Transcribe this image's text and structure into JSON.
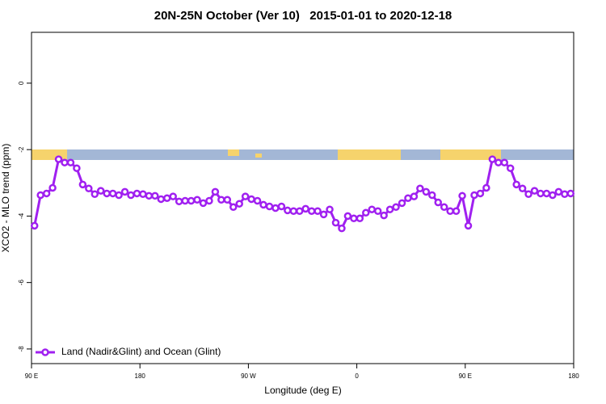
{
  "chart_data": {
    "type": "line",
    "title": "20N-25N October (Ver 10)   2015-01-01 to 2020-12-18",
    "xlabel": "Longitude (deg E)",
    "ylabel": "XCO2 - MLO trend (ppm)",
    "xlim": [
      90,
      540
    ],
    "ylim": [
      -8.44,
      1.53
    ],
    "xticks": [
      {
        "value": 90,
        "label": "90 E"
      },
      180,
      {
        "value": 270,
        "label": "90 W"
      },
      {
        "value": 360,
        "label": "0"
      },
      {
        "value": 450,
        "label": "90 E"
      },
      {
        "value": 540,
        "label": "180"
      }
    ],
    "yticks": [
      0,
      -2,
      -4,
      -6,
      -8
    ],
    "legend": "bottom-left",
    "x": [
      92.5,
      97.5,
      102.5,
      107.5,
      112.5,
      117.5,
      122.5,
      127.5,
      132.5,
      137.5,
      142.5,
      147.5,
      152.5,
      157.5,
      162.5,
      167.5,
      172.5,
      177.5,
      182.5,
      187.5,
      192.5,
      197.5,
      202.5,
      207.5,
      212.5,
      217.5,
      222.5,
      227.5,
      232.5,
      237.5,
      242.5,
      247.5,
      252.5,
      257.5,
      262.5,
      267.5,
      272.5,
      277.5,
      282.5,
      287.5,
      292.5,
      297.5,
      302.5,
      307.5,
      312.5,
      317.5,
      322.5,
      327.5,
      332.5,
      337.5,
      342.5,
      347.5,
      352.5,
      357.5,
      362.5,
      367.5,
      372.5,
      377.5,
      382.5,
      387.5,
      392.5,
      397.5,
      402.5,
      407.5,
      412.5,
      417.5,
      422.5,
      427.5,
      432.5,
      437.5,
      442.5,
      447.5,
      452.5,
      457.5,
      462.5,
      467.5,
      472.5,
      477.5,
      482.5,
      487.5,
      492.5,
      497.5,
      502.5,
      507.5,
      512.5,
      517.5,
      522.5,
      527.5,
      532.5,
      537.5
    ],
    "series": [
      {
        "name": "Land (Nadir&Glint) and Ocean (Glint)",
        "color": "#a020f0",
        "values": [
          -4.29,
          -3.37,
          -3.32,
          -3.15,
          -2.29,
          -2.39,
          -2.39,
          -2.56,
          -3.05,
          -3.17,
          -3.34,
          -3.24,
          -3.32,
          -3.32,
          -3.37,
          -3.27,
          -3.37,
          -3.32,
          -3.34,
          -3.39,
          -3.39,
          -3.49,
          -3.46,
          -3.41,
          -3.56,
          -3.54,
          -3.54,
          -3.51,
          -3.61,
          -3.54,
          -3.27,
          -3.51,
          -3.51,
          -3.73,
          -3.63,
          -3.41,
          -3.49,
          -3.54,
          -3.66,
          -3.71,
          -3.76,
          -3.71,
          -3.83,
          -3.85,
          -3.85,
          -3.78,
          -3.85,
          -3.85,
          -3.95,
          -3.8,
          -4.2,
          -4.37,
          -4.0,
          -4.07,
          -4.07,
          -3.9,
          -3.8,
          -3.85,
          -3.98,
          -3.8,
          -3.73,
          -3.61,
          -3.46,
          -3.41,
          -3.17,
          -3.27,
          -3.37,
          -3.59,
          -3.73,
          -3.85,
          -3.85,
          -3.39,
          -4.29,
          -3.37,
          -3.32,
          -3.15,
          -2.29,
          -2.39,
          -2.39,
          -2.56,
          -3.05,
          -3.17,
          -3.34,
          -3.24,
          -3.32,
          -3.32,
          -3.37,
          -3.27,
          -3.34,
          -3.32
        ]
      }
    ]
  }
}
